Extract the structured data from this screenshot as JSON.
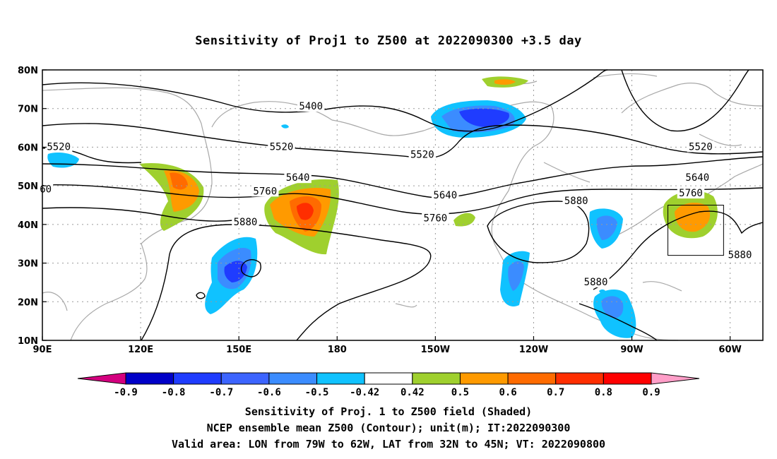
{
  "title": "Sensitivity of Proj1 to Z500 at 2022090300 +3.5 day",
  "map": {
    "lat_labels": [
      "80N",
      "70N",
      "60N",
      "50N",
      "40N",
      "30N",
      "20N",
      "10N"
    ],
    "lon_labels": [
      "90E",
      "120E",
      "150E",
      "180",
      "150W",
      "120W",
      "90W",
      "60W"
    ],
    "contour_levels": [
      "5400",
      "5520",
      "5640",
      "5760",
      "5880"
    ],
    "contour_labels": [
      {
        "text": "5400",
        "lon": 172,
        "lat": 70.5
      },
      {
        "text": "5520",
        "lon": 95,
        "lat": 60
      },
      {
        "text": "5520",
        "lon": 163,
        "lat": 60
      },
      {
        "text": "5520",
        "lon": -154,
        "lat": 58
      },
      {
        "text": "5520",
        "lon": -69,
        "lat": 60
      },
      {
        "text": "5640",
        "lon": 168,
        "lat": 52
      },
      {
        "text": "5640",
        "lon": -147,
        "lat": 47.5
      },
      {
        "text": "5640",
        "lon": -70,
        "lat": 52
      },
      {
        "text": "60",
        "lon": 91,
        "lat": 49
      },
      {
        "text": "5760",
        "lon": 158,
        "lat": 48.5
      },
      {
        "text": "5760",
        "lon": -150,
        "lat": 41.5
      },
      {
        "text": "5760",
        "lon": -72,
        "lat": 48
      },
      {
        "text": "5880",
        "lon": 152,
        "lat": 40.5
      },
      {
        "text": "5880",
        "lon": -107,
        "lat": 46
      },
      {
        "text": "5880",
        "lon": -57,
        "lat": 32
      },
      {
        "text": "5880",
        "lon": -101,
        "lat": 25
      }
    ],
    "valid_box": {
      "lon_min": -79,
      "lon_max": -62,
      "lat_min": 32,
      "lat_max": 45
    }
  },
  "colorbar": {
    "labels": [
      "-0.9",
      "-0.8",
      "-0.7",
      "-0.6",
      "-0.5",
      "-0.42",
      "0.42",
      "0.5",
      "0.6",
      "0.7",
      "0.8",
      "0.9"
    ],
    "colors": [
      "#d4007f",
      "#0000c8",
      "#1f3cff",
      "#3c64ff",
      "#3b8cff",
      "#10c2ff",
      "#ffffff",
      "#9fd02e",
      "#ff9a00",
      "#ff6b00",
      "#ff2e00",
      "#ff0000",
      "#ff9ec8"
    ]
  },
  "captions": {
    "line1": "Sensitivity of Proj. 1 to Z500 field (Shaded)",
    "line2": "NCEP ensemble mean Z500 (Contour); unit(m); IT:2022090300",
    "line3": "Valid area: LON from 79W to 62W, LAT from 32N to 45N; VT: 2022090800"
  }
}
